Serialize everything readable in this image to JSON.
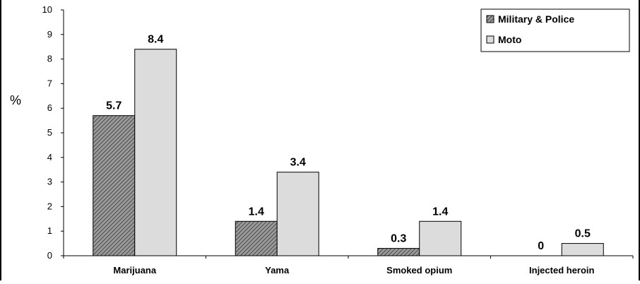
{
  "chart_data": {
    "type": "bar",
    "ylabel": "%",
    "ylim": [
      0,
      10
    ],
    "yticks": [
      "0",
      "1",
      "2",
      "3",
      "4",
      "5",
      "6",
      "7",
      "8",
      "9",
      "10"
    ],
    "categories": [
      "Marijuana",
      "Yama",
      "Smoked opium",
      "Injected heroin"
    ],
    "series": [
      {
        "name": "Military & Police",
        "values": [
          5.7,
          1.4,
          0.3,
          0
        ],
        "labels": [
          "5.7",
          "1.4",
          "0.3",
          "0"
        ],
        "fill": "hatched-grey"
      },
      {
        "name": "Moto",
        "values": [
          8.4,
          3.4,
          1.4,
          0.5
        ],
        "labels": [
          "8.4",
          "3.4",
          "1.4",
          "0.5"
        ],
        "fill": "#dcdcdc"
      }
    ],
    "legend_position": "top-right",
    "grid": false
  }
}
